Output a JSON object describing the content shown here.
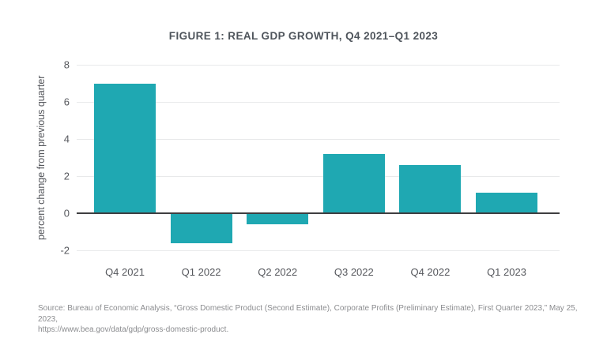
{
  "figure": {
    "source": {
      "line1": "Source: Bureau of Economic Analysis, “Gross Domestic Product (Second Estimate), Corporate Profits (Preliminary Estimate), First Quarter 2023,” May 25, 2023,",
      "line2": "https://www.bea.gov/data/gdp/gross-domestic-product."
    }
  },
  "chart_data": {
    "type": "bar",
    "title": "FIGURE 1: REAL GDP GROWTH, Q4 2021–Q1 2023",
    "categories": [
      "Q4 2021",
      "Q1 2022",
      "Q2 2022",
      "Q3 2022",
      "Q4 2022",
      "Q1 2023"
    ],
    "values": [
      7.0,
      -1.6,
      -0.6,
      3.2,
      2.6,
      1.1
    ],
    "xlabel": "",
    "ylabel": "percent change from previous quarter",
    "ylim": [
      -2,
      8
    ],
    "yticks": [
      8,
      6,
      4,
      2,
      0,
      -2
    ],
    "grid": true,
    "legend": "none",
    "bar_color": "#1FA8B2",
    "gridline_color": "#e8e9ea",
    "zero_line_color": "#3e3e40"
  }
}
